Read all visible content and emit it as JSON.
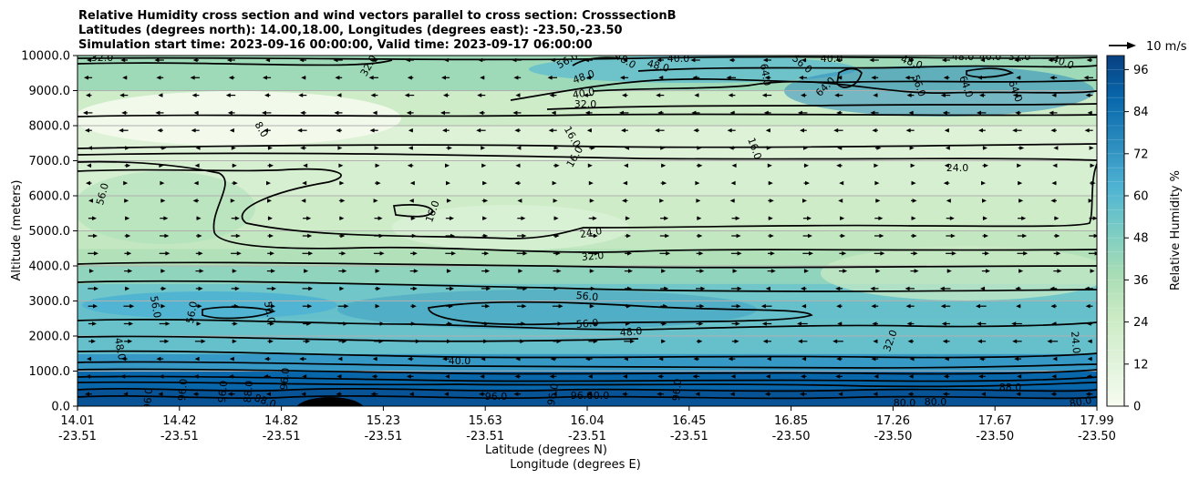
{
  "chart_data": {
    "type": "heatmap",
    "title_lines": [
      "Relative Humidity cross section and wind vectors parallel to cross section: CrosssectionB",
      "Latitudes (degrees north): 14.00,18.00, Longitudes (degrees east): -23.50,-23.50",
      "Simulation start time: 2023-09-16 00:00:00, Valid time: 2023-09-17 06:00:00"
    ],
    "ylabel": "Altitude (meters)",
    "xlabel_lines": [
      "Latitude (degrees N)",
      "Longitude (degrees E)"
    ],
    "ylim": [
      0,
      10000
    ],
    "yticks": [
      "0.0",
      "1000.0",
      "2000.0",
      "3000.0",
      "4000.0",
      "5000.0",
      "6000.0",
      "7000.0",
      "8000.0",
      "9000.0",
      "10000.0"
    ],
    "xticks": [
      {
        "lat": "14.01",
        "lon": "-23.51"
      },
      {
        "lat": "14.42",
        "lon": "-23.51"
      },
      {
        "lat": "14.82",
        "lon": "-23.51"
      },
      {
        "lat": "15.23",
        "lon": "-23.51"
      },
      {
        "lat": "15.63",
        "lon": "-23.51"
      },
      {
        "lat": "16.04",
        "lon": "-23.51"
      },
      {
        "lat": "16.45",
        "lon": "-23.51"
      },
      {
        "lat": "16.85",
        "lon": "-23.50"
      },
      {
        "lat": "17.26",
        "lon": "-23.50"
      },
      {
        "lat": "17.67",
        "lon": "-23.50"
      },
      {
        "lat": "17.99",
        "lon": "-23.50"
      }
    ],
    "colorbar": {
      "label": "Relative Humidity %",
      "min": 0,
      "max": 100,
      "step": 4,
      "ticks": [
        "0",
        "12",
        "24",
        "36",
        "48",
        "60",
        "72",
        "84",
        "96"
      ]
    },
    "quiver_key": "10 m/s",
    "humidity_profile": {
      "altitudes": [
        0,
        500,
        1000,
        1500,
        2000,
        2500,
        3000,
        3500,
        4000,
        4500,
        5000,
        6000,
        7000,
        8000,
        9000,
        10000
      ],
      "rh": [
        96,
        92,
        84,
        58,
        54,
        56,
        56,
        50,
        38,
        30,
        26,
        22,
        16,
        12,
        36,
        44
      ]
    },
    "contour_labels": [
      "32.0",
      "32.0",
      "56.0",
      "48.0",
      "40.0",
      "32.0",
      "48.0",
      "48.0",
      "40.0",
      "64.0",
      "56.0",
      "64.0",
      "40.0",
      "48.0",
      "56.0",
      "64.0",
      "64.0",
      "48.0",
      "40.0",
      "32.0",
      "40.0",
      "8.0",
      "16.0",
      "16.0",
      "16.0",
      "24.0",
      "56.0",
      "16.0",
      "24.0",
      "32.0",
      "56.0",
      "56.0",
      "56.0",
      "56.0",
      "56.0",
      "48.0",
      "48.0",
      "40.0",
      "32.0",
      "24.0",
      "96.0",
      "96.0",
      "96.0",
      "88.0",
      "96.0",
      "96.0",
      "88.0",
      "96.0",
      "96.0",
      "96.0",
      "88.0",
      "80.0",
      "80.0",
      "80.0",
      "40.0"
    ]
  }
}
